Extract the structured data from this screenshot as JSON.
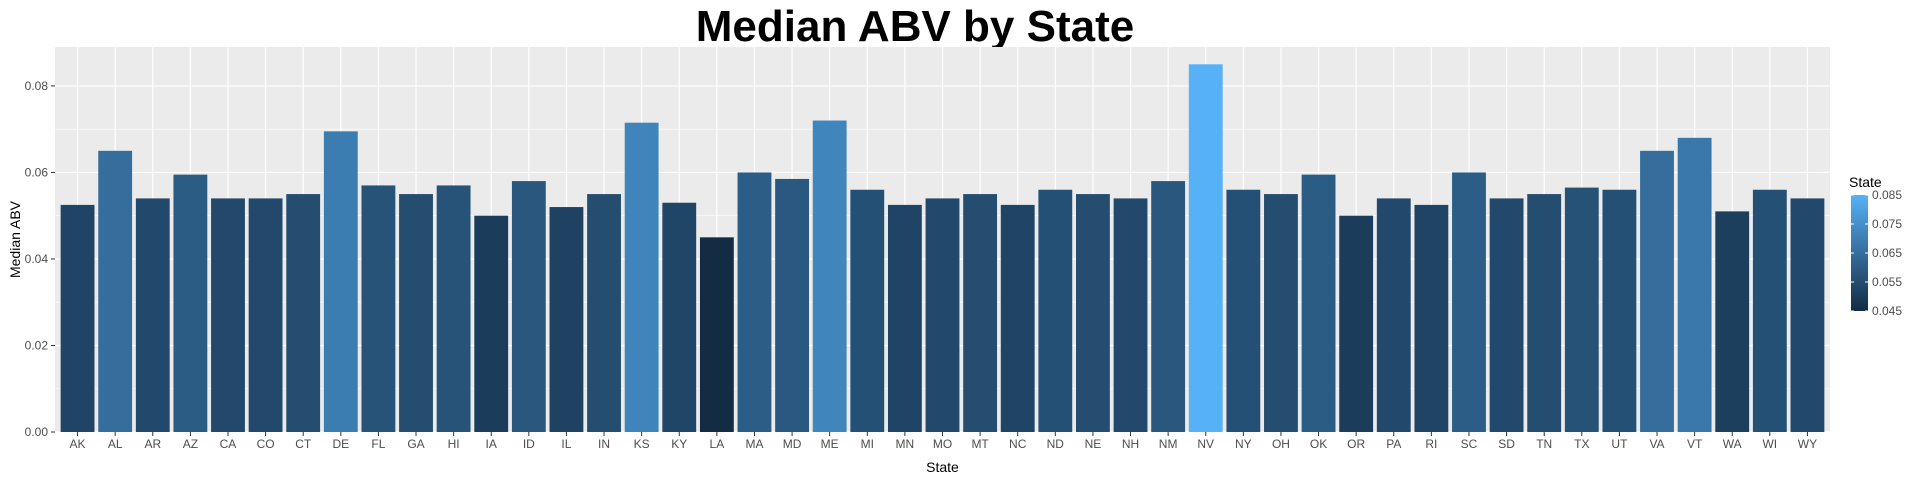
{
  "chart_data": {
    "type": "bar",
    "title": "Median ABV by State",
    "xlabel": "State",
    "ylabel": "Median ABV",
    "ylim": [
      0,
      0.089
    ],
    "yticks": [
      "0.00",
      "0.02",
      "0.04",
      "0.06",
      "0.08"
    ],
    "grid": true,
    "categories": [
      "AK",
      "AL",
      "AR",
      "AZ",
      "CA",
      "CO",
      "CT",
      "DE",
      "FL",
      "GA",
      "HI",
      "IA",
      "ID",
      "IL",
      "IN",
      "KS",
      "KY",
      "LA",
      "MA",
      "MD",
      "ME",
      "MI",
      "MN",
      "MO",
      "MT",
      "NC",
      "ND",
      "NE",
      "NH",
      "NM",
      "NV",
      "NY",
      "OH",
      "OK",
      "OR",
      "PA",
      "RI",
      "SC",
      "SD",
      "TN",
      "TX",
      "UT",
      "VA",
      "VT",
      "WA",
      "WI",
      "WY"
    ],
    "values": [
      0.0525,
      0.065,
      0.054,
      0.0595,
      0.054,
      0.054,
      0.055,
      0.0695,
      0.057,
      0.055,
      0.057,
      0.05,
      0.058,
      0.052,
      0.055,
      0.0715,
      0.053,
      0.045,
      0.06,
      0.0585,
      0.072,
      0.056,
      0.0525,
      0.054,
      0.055,
      0.0525,
      0.056,
      0.055,
      0.054,
      0.058,
      0.085,
      0.056,
      0.055,
      0.0595,
      0.05,
      0.054,
      0.0525,
      0.06,
      0.054,
      0.055,
      0.0565,
      0.056,
      0.065,
      0.068,
      0.051,
      0.056,
      0.054
    ],
    "legend": {
      "title": "State",
      "position": "right",
      "labels": [
        "0.085",
        "0.075",
        "0.065",
        "0.055",
        "0.045"
      ],
      "color_low": "#132B43",
      "color_high": "#56B1F7"
    },
    "panel_background": "#EBEBEB",
    "grid_color": "#FFFFFF"
  }
}
